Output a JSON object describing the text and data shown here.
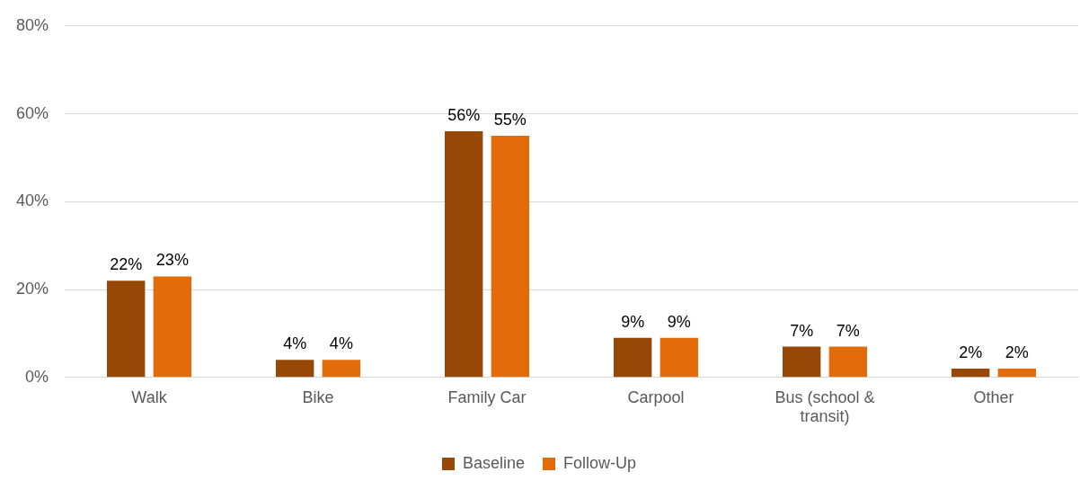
{
  "chart_data": {
    "type": "bar",
    "categories": [
      "Walk",
      "Bike",
      "Family Car",
      "Carpool",
      "Bus (school & transit)",
      "Other"
    ],
    "series": [
      {
        "name": "Baseline",
        "color": "#974706",
        "values": [
          22,
          4,
          56,
          9,
          7,
          2
        ],
        "value_labels": [
          "22%",
          "4%",
          "56%",
          "9%",
          "7%",
          "2%"
        ]
      },
      {
        "name": "Follow-Up",
        "color": "#e36c0a",
        "values": [
          23,
          4,
          55,
          9,
          7,
          2
        ],
        "value_labels": [
          "23%",
          "4%",
          "55%",
          "9%",
          "7%",
          "2%"
        ]
      }
    ],
    "ylim": [
      0,
      80
    ],
    "yticks": [
      {
        "value": 0,
        "label": "0%"
      },
      {
        "value": 20,
        "label": "20%"
      },
      {
        "value": 40,
        "label": "40%"
      },
      {
        "value": 60,
        "label": "60%"
      },
      {
        "value": 80,
        "label": "80%"
      }
    ],
    "grid": "y",
    "legend": "bottom"
  }
}
